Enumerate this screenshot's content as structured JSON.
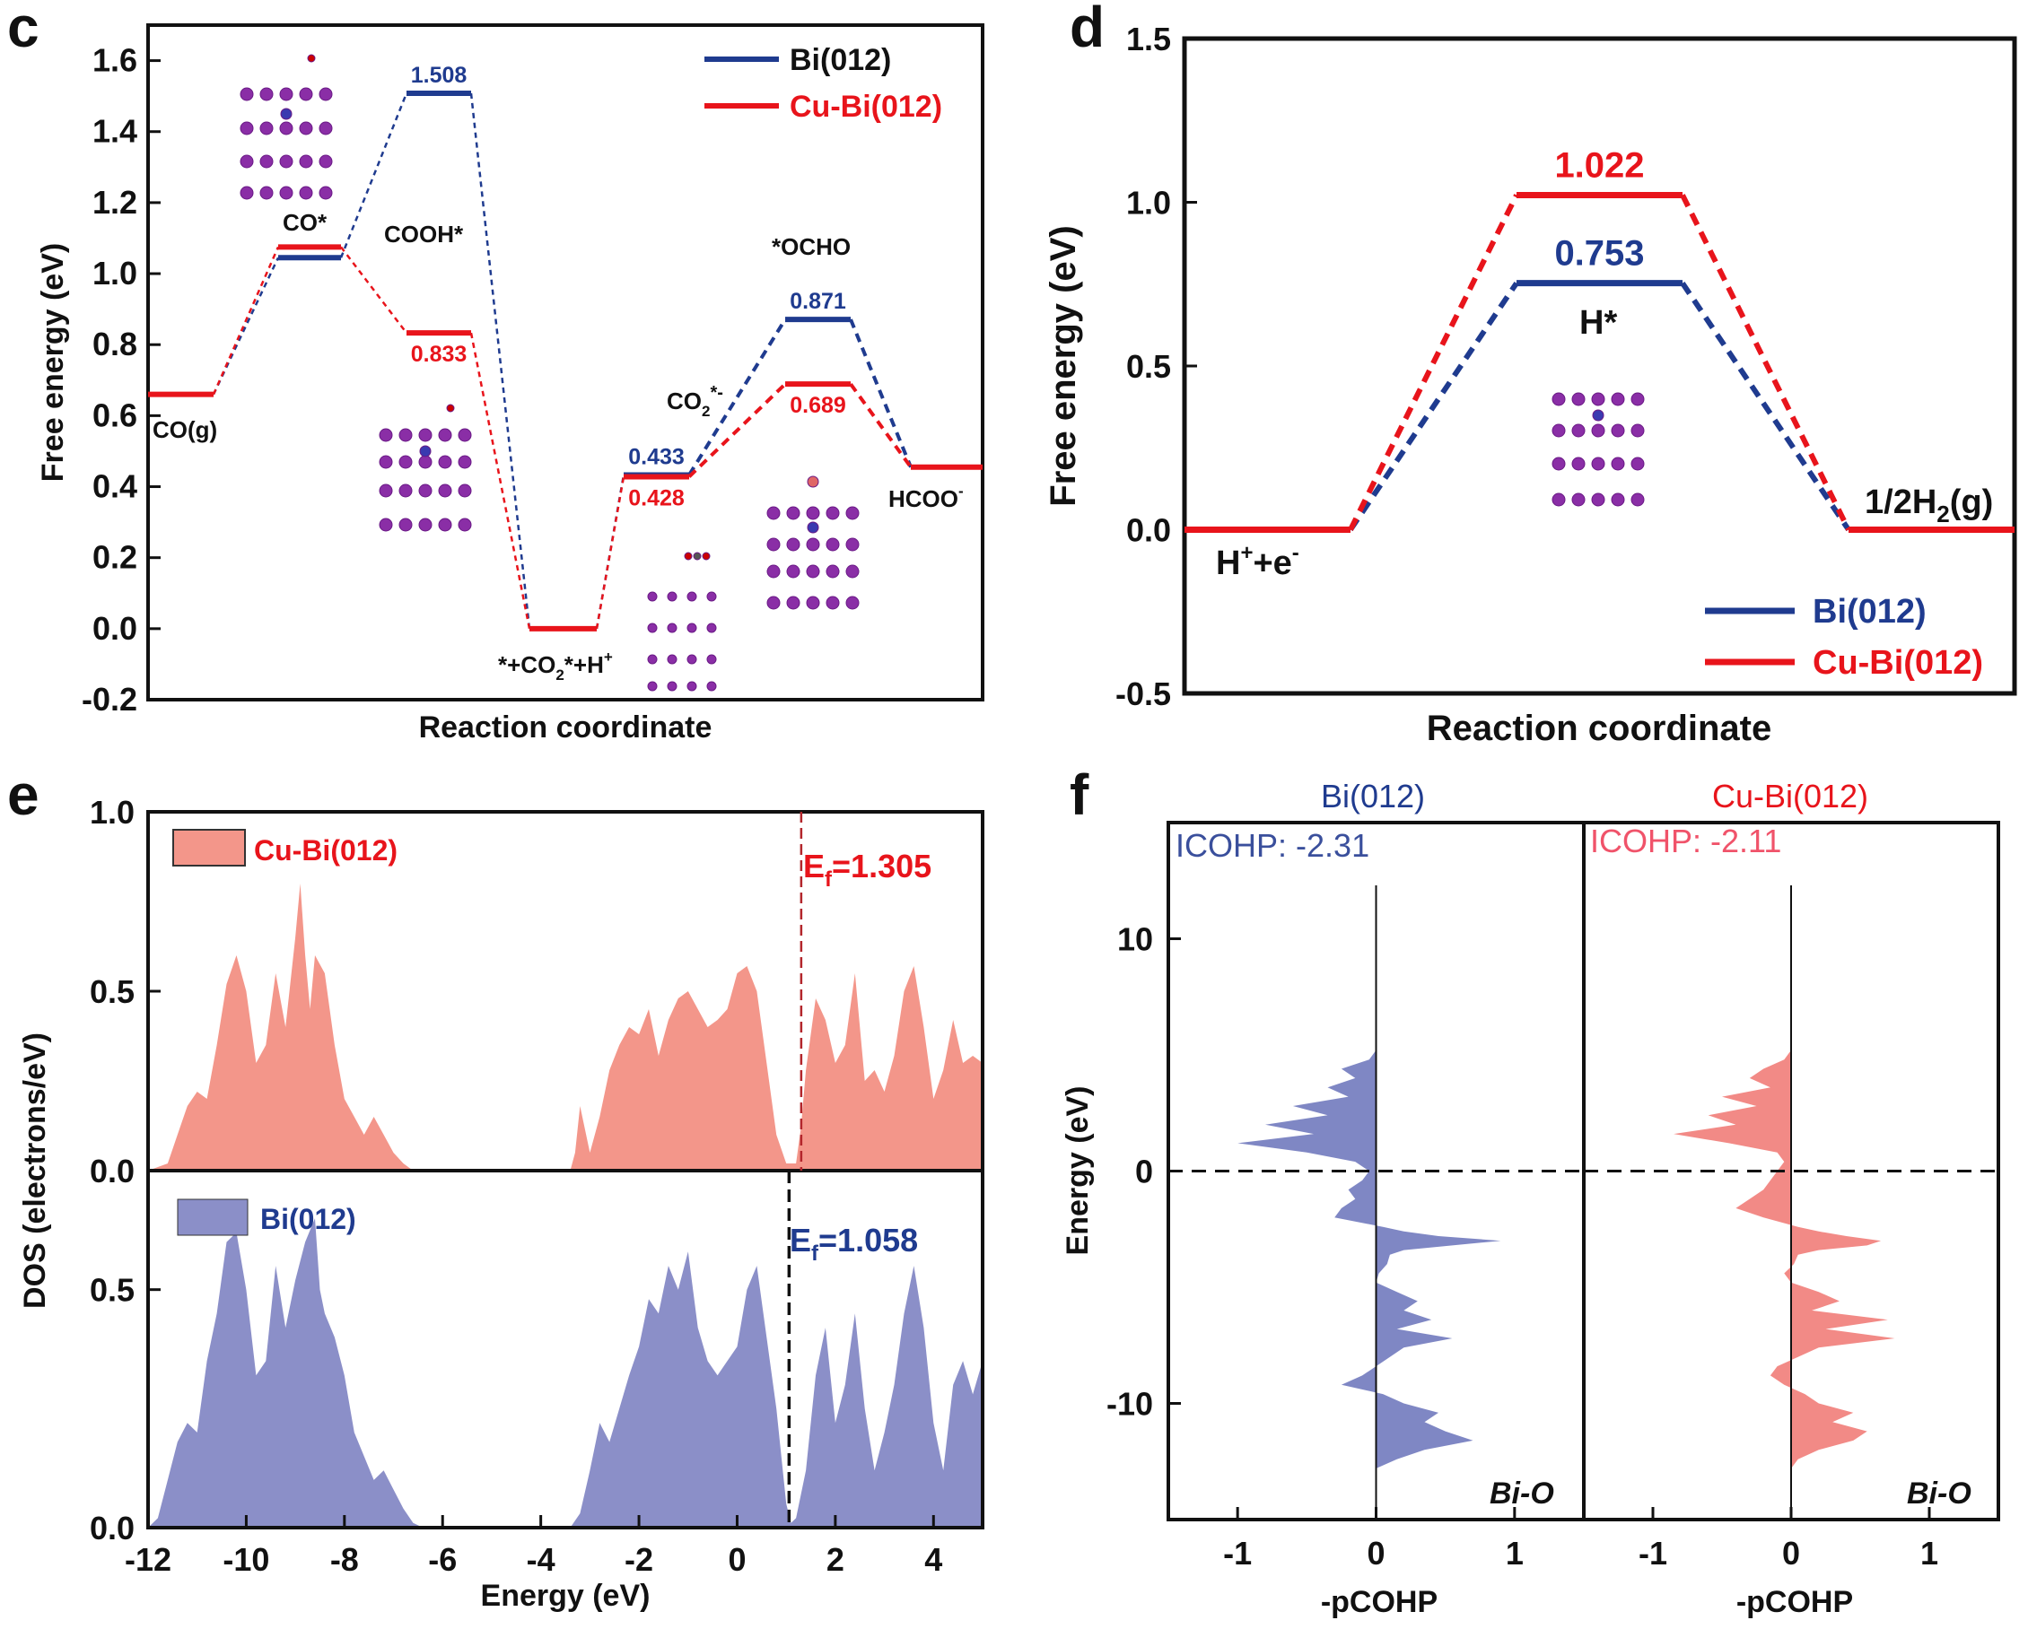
{
  "colors": {
    "blue": "#1f3b8f",
    "red": "#e8141b",
    "dos_red": "#f3968a",
    "dos_blue": "#8b8fc8",
    "cohp_blue": "#7f87c4",
    "cohp_red": "#f28a86"
  },
  "chart_data": [
    {
      "panel": "c",
      "type": "line",
      "title": "",
      "xlabel": "Reaction coordinate",
      "ylabel": "Free energy (eV)",
      "ylim": [
        -0.2,
        1.7
      ],
      "yticks": [
        "-0.2",
        "0.0",
        "0.2",
        "0.4",
        "0.6",
        "0.8",
        "1.0",
        "1.2",
        "1.4",
        "1.6"
      ],
      "legend": [
        {
          "name": "Bi(012)",
          "color": "#1f3b8f"
        },
        {
          "name": "Cu-Bi(012)",
          "color": "#e8141b"
        }
      ],
      "states": [
        "CO(g)",
        "CO*",
        "COOH*",
        "*+CO2*+H+",
        "CO2*-",
        "*OCHO",
        "HCOO-"
      ],
      "state_labels": {
        "co_g": "CO(g)",
        "co_star": "CO*",
        "cooh": "COOH*",
        "bare": "*+CO",
        "co2": "CO",
        "ocho": "*OCHO",
        "hcoo": "HCOO"
      },
      "series": [
        {
          "name": "Bi(012)",
          "path": [
            0.66,
            1.045,
            1.508,
            0.0,
            0.433,
            0.871,
            0.455
          ],
          "labels": [
            "",
            "",
            "1.508",
            "",
            "0.433",
            "0.871",
            ""
          ]
        },
        {
          "name": "Cu-Bi(012)",
          "path": [
            0.66,
            1.075,
            0.833,
            0.0,
            0.428,
            0.689,
            0.455
          ],
          "labels": [
            "",
            "",
            "0.833",
            "",
            "0.428",
            "0.689",
            ""
          ]
        }
      ]
    },
    {
      "panel": "d",
      "type": "line",
      "xlabel": "Reaction coordinate",
      "ylabel": "Free energy (eV)",
      "ylim": [
        -0.5,
        1.5
      ],
      "yticks": [
        "-0.5",
        "0.0",
        "0.5",
        "1.0",
        "1.5"
      ],
      "states": [
        "H++e-",
        "H*",
        "1/2H2(g)"
      ],
      "state_labels": {
        "h_star": "H*",
        "h_plus": "H",
        "h2": "1/2H"
      },
      "legend": [
        {
          "name": "Bi(012)",
          "color": "#1f3b8f"
        },
        {
          "name": "Cu-Bi(012)",
          "color": "#e8141b"
        }
      ],
      "series": [
        {
          "name": "Bi(012)",
          "values": [
            0.0,
            0.753,
            0.0
          ],
          "label": "0.753"
        },
        {
          "name": "Cu-Bi(012)",
          "values": [
            0.0,
            1.022,
            0.0
          ],
          "label": "1.022"
        }
      ]
    },
    {
      "panel": "e",
      "type": "area",
      "xlabel": "Energy (eV)",
      "ylabel": "DOS (electrons/eV)",
      "xlim": [
        -12,
        5
      ],
      "xticks": [
        "-12",
        "-10",
        "-8",
        "-6",
        "-4",
        "-2",
        "0",
        "2",
        "4"
      ],
      "yticks_top": [
        "0.0",
        "0.5",
        "1.0"
      ],
      "yticks_bottom": [
        "0.0",
        "0.5"
      ],
      "series": [
        {
          "name": "Cu-Bi(012)",
          "fermi": 1.305,
          "fermi_label": "1.305",
          "x": [
            -12,
            -11.6,
            -11.4,
            -11.2,
            -11.0,
            -10.8,
            -10.6,
            -10.4,
            -10.2,
            -10.0,
            -9.8,
            -9.6,
            -9.4,
            -9.2,
            -9.0,
            -8.9,
            -8.8,
            -8.7,
            -8.6,
            -8.4,
            -8.2,
            -8.0,
            -7.8,
            -7.6,
            -7.4,
            -7.2,
            -7.0,
            -6.8,
            -6.6,
            -6.4,
            -5.0,
            -3.4,
            -3.3,
            -3.2,
            -3.0,
            -2.8,
            -2.6,
            -2.4,
            -2.2,
            -2.0,
            -1.8,
            -1.6,
            -1.4,
            -1.2,
            -1.0,
            -0.8,
            -0.6,
            -0.4,
            -0.2,
            0.0,
            0.2,
            0.4,
            0.6,
            0.8,
            1.0,
            1.1,
            1.2,
            1.3,
            1.4,
            1.6,
            1.8,
            2.0,
            2.2,
            2.4,
            2.6,
            2.8,
            3.0,
            3.2,
            3.4,
            3.6,
            3.8,
            4.0,
            4.2,
            4.4,
            4.6,
            4.8,
            5.0
          ],
          "y": [
            0,
            0.02,
            0.1,
            0.18,
            0.22,
            0.2,
            0.35,
            0.52,
            0.6,
            0.5,
            0.3,
            0.35,
            0.55,
            0.4,
            0.65,
            0.8,
            0.6,
            0.45,
            0.6,
            0.55,
            0.35,
            0.2,
            0.15,
            0.1,
            0.15,
            0.1,
            0.05,
            0.02,
            0,
            0,
            0,
            0,
            0.05,
            0.18,
            0.05,
            0.15,
            0.28,
            0.35,
            0.4,
            0.38,
            0.45,
            0.32,
            0.42,
            0.48,
            0.5,
            0.45,
            0.4,
            0.42,
            0.45,
            0.55,
            0.57,
            0.5,
            0.3,
            0.1,
            0.02,
            0.02,
            0.02,
            0.12,
            0.28,
            0.48,
            0.42,
            0.3,
            0.35,
            0.55,
            0.25,
            0.28,
            0.22,
            0.32,
            0.5,
            0.57,
            0.4,
            0.2,
            0.28,
            0.42,
            0.3,
            0.32,
            0.3
          ]
        },
        {
          "name": "Bi(012)",
          "fermi": 1.058,
          "fermi_label": "1.058",
          "x": [
            -12,
            -11.8,
            -11.6,
            -11.4,
            -11.2,
            -11.0,
            -10.8,
            -10.6,
            -10.4,
            -10.2,
            -10.0,
            -9.8,
            -9.6,
            -9.4,
            -9.2,
            -9.0,
            -8.8,
            -8.6,
            -8.5,
            -8.4,
            -8.2,
            -8.0,
            -7.8,
            -7.6,
            -7.4,
            -7.2,
            -7.0,
            -6.8,
            -6.6,
            -6.4,
            -5.0,
            -3.4,
            -3.2,
            -3.0,
            -2.8,
            -2.6,
            -2.4,
            -2.2,
            -2.0,
            -1.8,
            -1.6,
            -1.4,
            -1.2,
            -1.0,
            -0.8,
            -0.6,
            -0.4,
            -0.2,
            0.0,
            0.2,
            0.4,
            0.6,
            0.8,
            1.0,
            1.1,
            1.2,
            1.4,
            1.6,
            1.8,
            2.0,
            2.2,
            2.4,
            2.6,
            2.8,
            3.0,
            3.2,
            3.4,
            3.6,
            3.8,
            4.0,
            4.2,
            4.4,
            4.6,
            4.8,
            5.0
          ],
          "y": [
            0,
            0.02,
            0.1,
            0.18,
            0.22,
            0.2,
            0.35,
            0.45,
            0.6,
            0.62,
            0.5,
            0.32,
            0.35,
            0.55,
            0.42,
            0.52,
            0.6,
            0.65,
            0.5,
            0.45,
            0.4,
            0.32,
            0.2,
            0.15,
            0.1,
            0.12,
            0.08,
            0.04,
            0.01,
            0,
            0,
            0,
            0.03,
            0.12,
            0.22,
            0.18,
            0.25,
            0.32,
            0.38,
            0.48,
            0.45,
            0.55,
            0.5,
            0.58,
            0.42,
            0.35,
            0.32,
            0.35,
            0.38,
            0.5,
            0.55,
            0.4,
            0.25,
            0.05,
            0.01,
            0.02,
            0.12,
            0.32,
            0.42,
            0.22,
            0.3,
            0.45,
            0.25,
            0.12,
            0.2,
            0.3,
            0.45,
            0.55,
            0.42,
            0.22,
            0.12,
            0.3,
            0.35,
            0.28,
            0.35
          ]
        }
      ]
    },
    {
      "panel": "f",
      "type": "area",
      "xlabel": "-pCOHP",
      "ylabel": "Energy (eV)",
      "xlim": [
        -1.5,
        1.5
      ],
      "ylim": [
        -15,
        15
      ],
      "xticks": [
        "-1",
        "0",
        "1"
      ],
      "yticks": [
        "10",
        "0",
        "-10"
      ],
      "bond_label": "Bi-O",
      "series": [
        {
          "name": "Bi(012)",
          "icohp_label": "ICOHP:",
          "icohp": "-2.31",
          "e": [
            5.2,
            4.8,
            4.4,
            4.0,
            3.6,
            3.2,
            2.8,
            2.4,
            2.0,
            1.6,
            1.2,
            0.8,
            0.4,
            0.0,
            -0.4,
            -0.8,
            -1.2,
            -1.6,
            -2.0,
            -2.4,
            -2.6,
            -2.8,
            -3.0,
            -3.2,
            -3.4,
            -3.6,
            -4.0,
            -4.4,
            -4.8,
            -5.2,
            -5.6,
            -6.0,
            -6.4,
            -6.8,
            -7.2,
            -7.6,
            -8.0,
            -8.4,
            -8.8,
            -9.2,
            -9.6,
            -10.0,
            -10.4,
            -10.8,
            -11.2,
            -11.6,
            -12.0,
            -12.4,
            -12.8
          ],
          "v": [
            0,
            -0.05,
            -0.25,
            -0.15,
            -0.35,
            -0.2,
            -0.6,
            -0.35,
            -0.8,
            -0.45,
            -1.0,
            -0.5,
            -0.15,
            -0.05,
            -0.1,
            -0.2,
            -0.15,
            -0.25,
            -0.3,
            0.05,
            0.2,
            0.45,
            0.9,
            0.55,
            0.2,
            0.1,
            0.08,
            0.02,
            0.0,
            0.15,
            0.3,
            0.2,
            0.4,
            0.15,
            0.55,
            0.2,
            0.1,
            0.0,
            -0.1,
            -0.25,
            0.05,
            0.2,
            0.45,
            0.35,
            0.5,
            0.7,
            0.35,
            0.15,
            0.0
          ]
        },
        {
          "name": "Cu-Bi(012)",
          "icohp_label": "ICOHP:",
          "icohp": "-2.11",
          "e": [
            5.2,
            4.8,
            4.4,
            4.0,
            3.6,
            3.2,
            2.8,
            2.4,
            2.0,
            1.6,
            1.2,
            0.8,
            0.4,
            0.0,
            -0.4,
            -0.8,
            -1.2,
            -1.6,
            -2.0,
            -2.4,
            -2.6,
            -2.8,
            -3.0,
            -3.2,
            -3.4,
            -3.6,
            -4.0,
            -4.4,
            -4.8,
            -5.2,
            -5.6,
            -6.0,
            -6.4,
            -6.8,
            -7.2,
            -7.6,
            -8.0,
            -8.4,
            -8.8,
            -9.2,
            -9.6,
            -10.0,
            -10.4,
            -10.8,
            -11.2,
            -11.6,
            -12.0,
            -12.4,
            -12.8
          ],
          "v": [
            0,
            -0.05,
            -0.2,
            -0.3,
            -0.15,
            -0.5,
            -0.25,
            -0.6,
            -0.4,
            -0.85,
            -0.45,
            -0.1,
            -0.05,
            -0.1,
            -0.15,
            -0.2,
            -0.3,
            -0.4,
            -0.2,
            0.05,
            0.2,
            0.4,
            0.65,
            0.55,
            0.2,
            0.05,
            0.02,
            -0.05,
            0.0,
            0.2,
            0.35,
            0.15,
            0.7,
            0.25,
            0.75,
            0.2,
            0.05,
            -0.1,
            -0.15,
            -0.05,
            0.1,
            0.2,
            0.45,
            0.3,
            0.55,
            0.45,
            0.2,
            0.05,
            0.0
          ]
        }
      ]
    }
  ],
  "panels": {
    "c": {
      "letter": "c"
    },
    "d": {
      "letter": "d"
    },
    "e": {
      "letter": "e"
    },
    "f": {
      "letter": "f"
    }
  }
}
